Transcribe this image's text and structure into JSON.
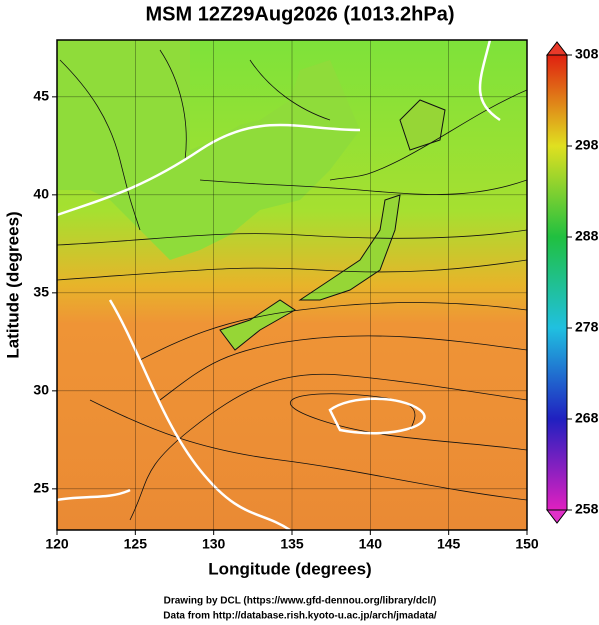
{
  "title": "MSM 12Z29Aug2026 (1013.2hPa)",
  "map": {
    "xlabel": "Longitude (degrees)",
    "ylabel": "Latitude  (degrees)",
    "xlim": [
      120,
      150
    ],
    "ylim": [
      22.9,
      47.9
    ],
    "xticks": [
      120,
      125,
      130,
      135,
      140,
      145,
      150
    ],
    "yticks": [
      25,
      30,
      35,
      40,
      45
    ]
  },
  "colorbar": {
    "lim": [
      258,
      308
    ],
    "ticks": [
      258,
      268,
      278,
      288,
      298,
      308
    ]
  },
  "credits": [
    "Drawing by DCL (https://www.gfd-dennou.org/library/dcl/)",
    "Data from http://database.rish.kyoto-u.ac.jp/arch/jmadata/"
  ]
}
